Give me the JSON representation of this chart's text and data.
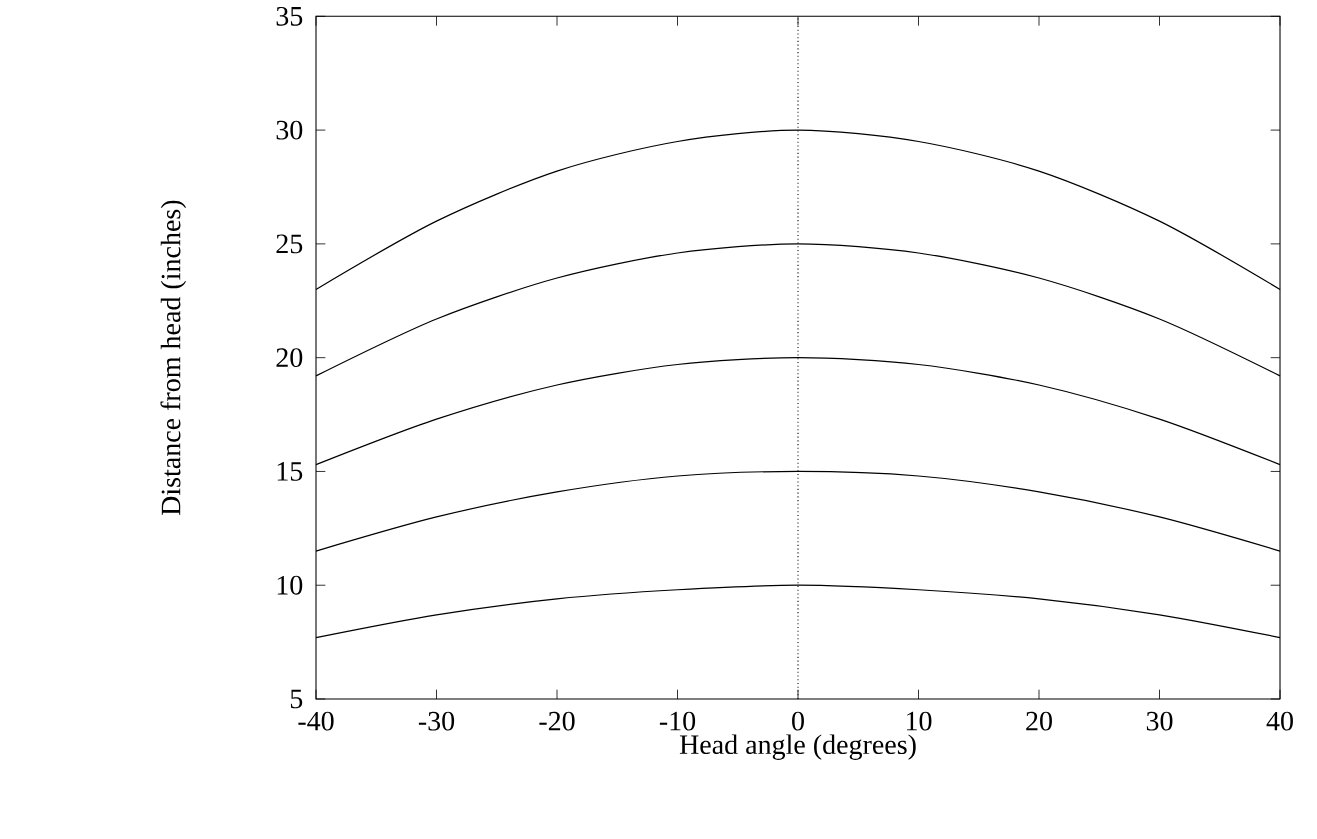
{
  "chart_data": {
    "type": "line",
    "xlabel": "Head angle (degrees)",
    "ylabel": "Distance from head (inches)",
    "x": [
      -40,
      -30,
      -20,
      -10,
      0,
      10,
      20,
      30,
      40
    ],
    "series": [
      {
        "color": "#000000",
        "values": [
          23.0,
          26.0,
          28.2,
          29.5,
          30.0,
          29.5,
          28.2,
          26.0,
          23.0
        ]
      },
      {
        "color": "#000000",
        "values": [
          19.2,
          21.7,
          23.5,
          24.6,
          25.0,
          24.6,
          23.5,
          21.7,
          19.2
        ]
      },
      {
        "color": "#000000",
        "values": [
          15.3,
          17.3,
          18.8,
          19.7,
          20.0,
          19.7,
          18.8,
          17.3,
          15.3
        ]
      },
      {
        "color": "#000000",
        "values": [
          11.5,
          13.0,
          14.1,
          14.8,
          15.0,
          14.8,
          14.1,
          13.0,
          11.5
        ]
      },
      {
        "color": "#000000",
        "values": [
          7.7,
          8.7,
          9.4,
          9.8,
          10.0,
          9.8,
          9.4,
          8.7,
          7.7
        ]
      }
    ],
    "xlim": [
      -40,
      40
    ],
    "ylim": [
      5,
      35
    ],
    "xticks": [
      -40,
      -30,
      -20,
      -10,
      0,
      10,
      20,
      30,
      40
    ],
    "yticks": [
      5,
      10,
      15,
      20,
      25,
      30,
      35
    ],
    "ref_lines": [
      {
        "axis": "x",
        "value": 0,
        "line_style": "dotted"
      }
    ],
    "grid": false,
    "marker": "none",
    "line_style": "solid"
  }
}
